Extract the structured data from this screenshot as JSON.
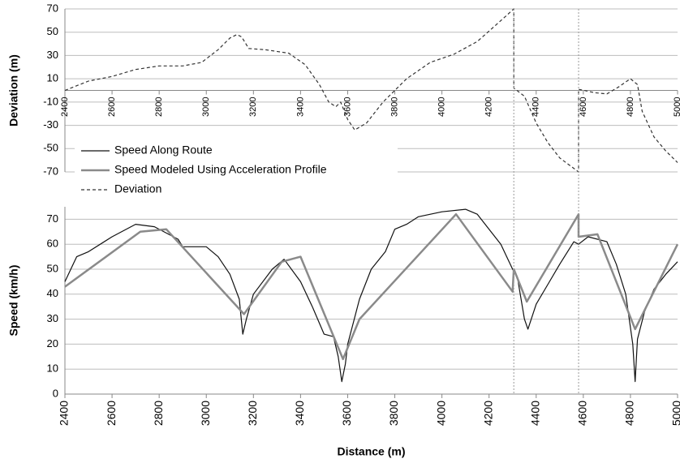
{
  "chart_data": [
    {
      "type": "line",
      "ylabel": "Deviation (m)",
      "xlim": [
        2400,
        5000
      ],
      "xticks": [
        2400,
        2600,
        2800,
        3000,
        3200,
        3400,
        3600,
        3800,
        4000,
        4200,
        4400,
        4600,
        4800,
        5000
      ],
      "ylim": [
        -70,
        70
      ],
      "yticks": [
        -70,
        -50,
        -30,
        -10,
        10,
        30,
        50,
        70
      ],
      "grid": true,
      "series": [
        {
          "name": "Deviation",
          "color": "#333333",
          "dash": true,
          "x": [
            2400,
            2500,
            2600,
            2700,
            2800,
            2900,
            2980,
            3050,
            3100,
            3130,
            3150,
            3180,
            3250,
            3350,
            3420,
            3480,
            3520,
            3550,
            3570,
            3600,
            3630,
            3680,
            3750,
            3850,
            3950,
            4050,
            4150,
            4250,
            4305,
            4305,
            4350,
            4400,
            4450,
            4500,
            4580,
            4580,
            4650,
            4700,
            4750,
            4800,
            4830,
            4850,
            4900,
            4950,
            5000
          ],
          "values": [
            0,
            8,
            12,
            18,
            21,
            21,
            24,
            35,
            45,
            48,
            46,
            36,
            35,
            32,
            22,
            5,
            -10,
            -14,
            -10,
            -25,
            -34,
            -28,
            -10,
            10,
            24,
            31,
            42,
            60,
            70,
            2,
            -5,
            -28,
            -45,
            -58,
            -70,
            1,
            -2,
            -3,
            3,
            10,
            5,
            -18,
            -40,
            -52,
            -62
          ]
        }
      ]
    },
    {
      "type": "line",
      "xlabel": "Distance (m)",
      "ylabel": "Speed (km/h)",
      "xlim": [
        2400,
        5000
      ],
      "xticks": [
        2400,
        2600,
        2800,
        3000,
        3200,
        3400,
        3600,
        3800,
        4000,
        4200,
        4400,
        4600,
        4800,
        5000
      ],
      "ylim": [
        0,
        75
      ],
      "yticks": [
        0,
        10,
        20,
        30,
        40,
        50,
        60,
        70
      ],
      "grid": true,
      "vlines": [
        4305,
        4580
      ],
      "series": [
        {
          "name": "Speed Along Route",
          "color": "#111111",
          "width": 1.2,
          "x": [
            2400,
            2450,
            2500,
            2600,
            2700,
            2780,
            2880,
            2900,
            3000,
            3050,
            3100,
            3140,
            3155,
            3170,
            3200,
            3280,
            3330,
            3400,
            3450,
            3500,
            3540,
            3560,
            3575,
            3590,
            3600,
            3650,
            3700,
            3760,
            3800,
            3850,
            3900,
            4000,
            4100,
            4150,
            4200,
            4250,
            4300,
            4320,
            4350,
            4365,
            4400,
            4450,
            4500,
            4560,
            4580,
            4620,
            4700,
            4740,
            4780,
            4810,
            4820,
            4830,
            4860,
            4900,
            4950,
            5000
          ],
          "values": [
            45,
            55,
            57,
            63,
            68,
            67,
            62,
            59,
            59,
            55,
            48,
            38,
            24,
            30,
            40,
            50,
            54,
            45,
            35,
            24,
            23,
            15,
            5,
            12,
            20,
            38,
            50,
            57,
            66,
            68,
            71,
            73,
            74,
            72,
            66,
            60,
            50,
            47,
            30,
            26,
            36,
            44,
            52,
            61,
            60,
            63,
            61,
            52,
            40,
            20,
            5,
            22,
            33,
            42,
            48,
            53
          ]
        },
        {
          "name": "Speed  Modeled Using Acceleration Profile",
          "color": "#8a8a8a",
          "width": 2.5,
          "x": [
            2400,
            2720,
            2830,
            3160,
            3320,
            3400,
            3580,
            3650,
            4060,
            4300,
            4305,
            4360,
            4580,
            4580,
            4660,
            4820,
            5000
          ],
          "values": [
            43,
            65,
            66,
            32,
            53,
            55,
            14,
            30,
            72,
            41,
            50,
            37,
            72,
            63,
            64,
            26,
            60
          ]
        }
      ]
    }
  ]
}
